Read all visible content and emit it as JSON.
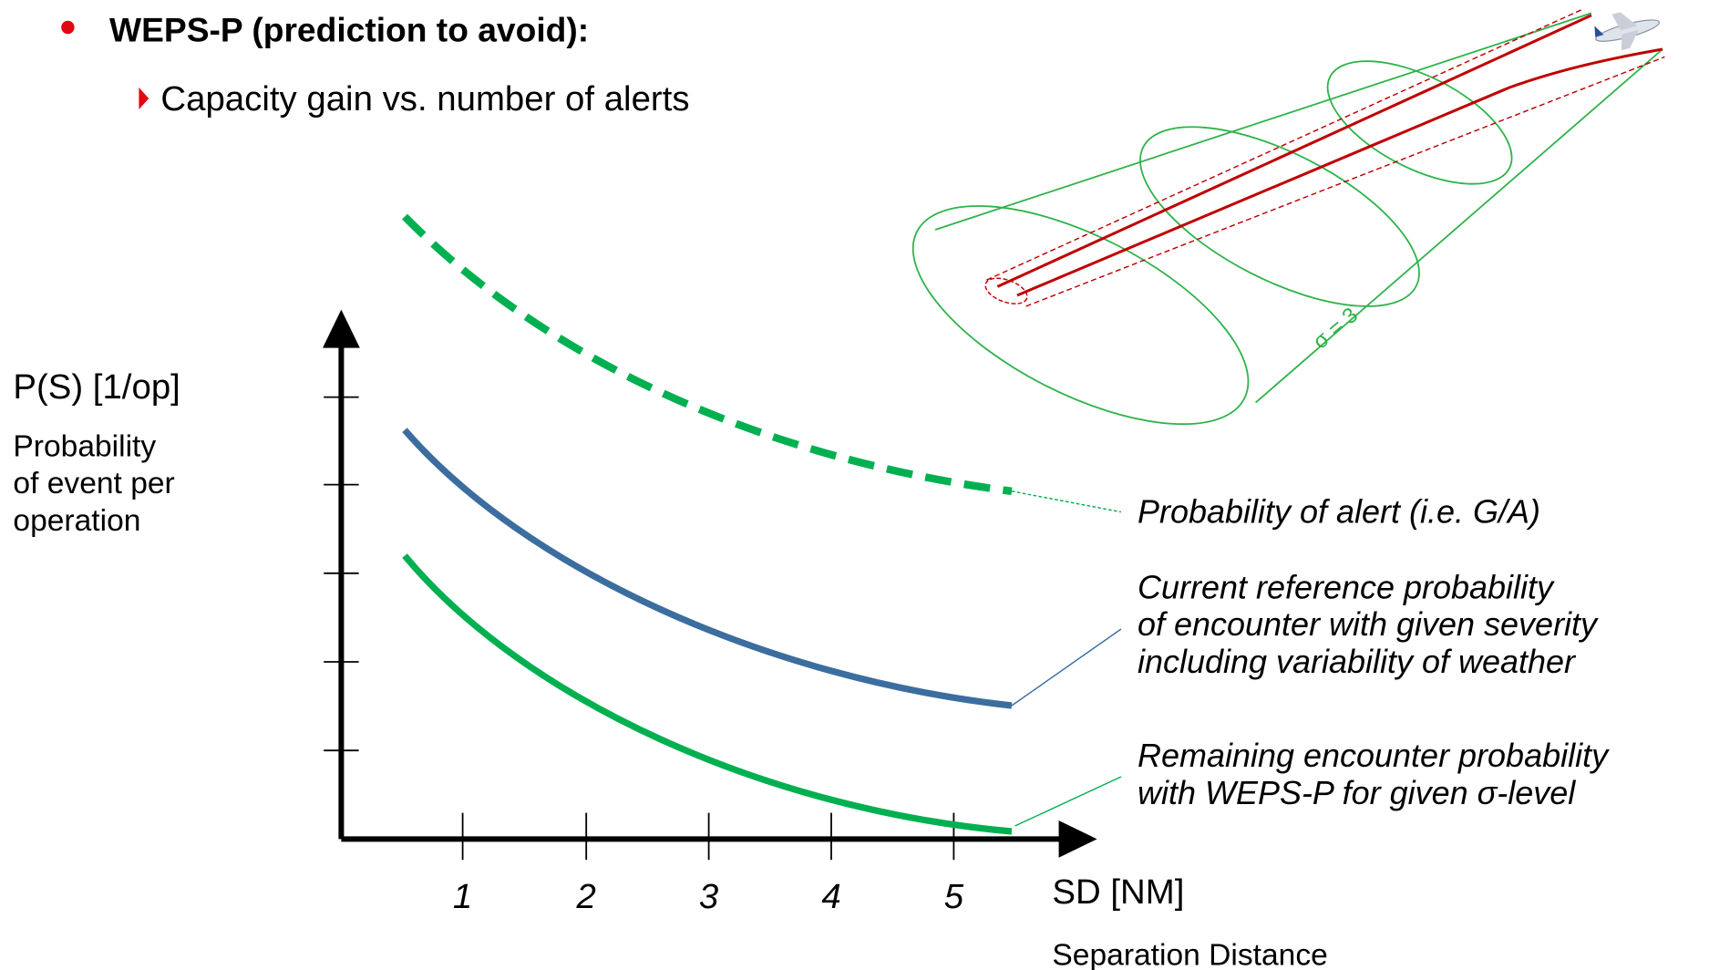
{
  "slide": {
    "bullet": "WEPS-P (prediction to avoid):",
    "sub_bullet": "Capacity gain vs. number of alerts"
  },
  "chart": {
    "y_label": "P(S) [1/op]",
    "y_description": [
      "Probability",
      "of event per",
      "operation"
    ],
    "x_label": "SD [NM]",
    "x_description": "Separation Distance",
    "x_tick_labels": [
      1,
      2,
      3,
      4,
      5
    ],
    "annotations": [
      [
        "Probability of alert (i.e. G/A)"
      ],
      [
        "Current reference probability",
        "of encounter with given severity",
        "including variability of weather"
      ],
      [
        "Remaining encounter probability",
        "with WEPS-P for given σ-level"
      ]
    ]
  },
  "diagram": {
    "sigma_label": "σ = 3"
  }
}
